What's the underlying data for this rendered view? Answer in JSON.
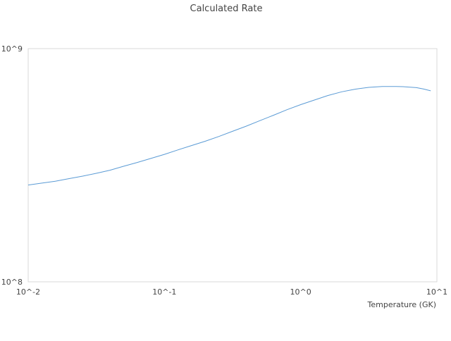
{
  "chart_data": {
    "type": "line",
    "title": "Calculated Rate",
    "xlabel": "Temperature (GK)",
    "ylabel": "",
    "xscale": "log",
    "yscale": "log",
    "xlim": [
      0.01,
      10
    ],
    "ylim": [
      100000000,
      1000000000
    ],
    "grid": true,
    "legend": "none",
    "x_ticks": [
      {
        "value": 0.01,
        "label": "10^-2"
      },
      {
        "value": 0.1,
        "label": "10^-1"
      },
      {
        "value": 1,
        "label": "10^0"
      },
      {
        "value": 10,
        "label": "10^1"
      }
    ],
    "y_ticks": [
      {
        "value": 100000000,
        "label": "10^8"
      },
      {
        "value": 1000000000,
        "label": "10^9"
      }
    ],
    "series": [
      {
        "color": "#5b9bd5",
        "x": [
          0.01,
          0.0126,
          0.0158,
          0.02,
          0.0251,
          0.0316,
          0.0398,
          0.0501,
          0.0631,
          0.0794,
          0.1,
          0.126,
          0.158,
          0.2,
          0.251,
          0.316,
          0.398,
          0.501,
          0.631,
          0.794,
          1.0,
          1.26,
          1.58,
          2.0,
          2.51,
          3.16,
          3.98,
          5.01,
          5.62,
          7.08,
          8.0,
          9.0
        ],
        "y": [
          260000000,
          265000000,
          270000000,
          277000000,
          284000000,
          292000000,
          301000000,
          313000000,
          325000000,
          338000000,
          352000000,
          368000000,
          384000000,
          401000000,
          420000000,
          442000000,
          465000000,
          491000000,
          518000000,
          547000000,
          575000000,
          602000000,
          629000000,
          653000000,
          670000000,
          682000000,
          688000000,
          688000000,
          687000000,
          680000000,
          671000000,
          659000000
        ]
      }
    ]
  }
}
